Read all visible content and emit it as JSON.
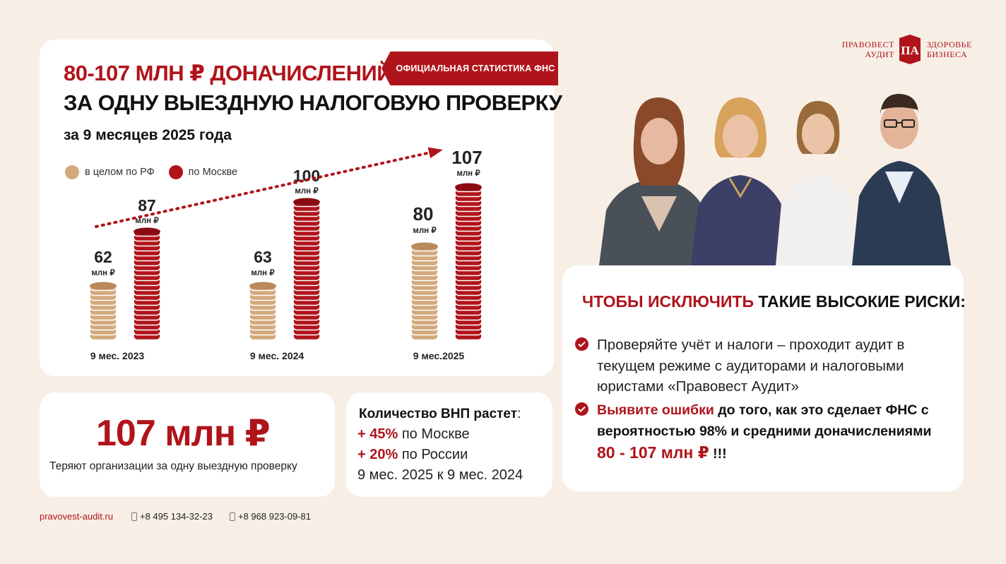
{
  "header": {
    "title_red": "80-107 МЛН ₽ ДОНАЧИСЛЕНИЙ",
    "title_black": "ЗА ОДНУ ВЫЕЗДНУЮ НАЛОГОВУЮ ПРОВЕРКУ",
    "subtitle": "за 9 месяцев 2025 года",
    "badge": "ОФИЦИАЛЬНАЯ СТАТИСТИКА ФНС"
  },
  "colors": {
    "brand_red": "#b0141b",
    "coin_gold": "#d3a97c",
    "background": "#f7efe6"
  },
  "chart_data": {
    "type": "bar",
    "categories": [
      "9 мес. 2023",
      "9 мес. 2024",
      "9 мес.2025"
    ],
    "unit": "млн ₽",
    "series": [
      {
        "name": "в целом по РФ",
        "values": [
          62,
          63,
          80
        ],
        "color": "#d3a97c"
      },
      {
        "name": "по Москве",
        "values": [
          87,
          100,
          107
        ],
        "color": "#b0141b"
      }
    ],
    "legend_position": "top-left",
    "grid": false,
    "trend_arrow": true,
    "ylim": [
      0,
      110
    ]
  },
  "loss": {
    "value": "107 млн ₽",
    "description": "Теряют организации за одну выездную проверку"
  },
  "growth": {
    "title": "Количество ВНП растет",
    "colon": ":",
    "lines": [
      {
        "pct": "+ 45%",
        "text": "по Москве"
      },
      {
        "pct": "+ 20%",
        "text": "по России"
      }
    ],
    "period": "9 мес. 2025 к 9 мес. 2024"
  },
  "tips": {
    "title_red": "ЧТОБЫ ИСКЛЮЧИТЬ",
    "title_black": "ТАКИЕ ВЫСОКИЕ РИСКИ:",
    "tip1": "Проверяйте учёт и налоги – проходит аудит в текущем режиме с аудиторами и налоговыми юристами «Правовест Аудит»",
    "tip2_red": "Выявите ошибки",
    "tip2_text": "до того, как это сделает ФНС с вероятностью 98% и средними доначислениями",
    "tip2_value": "80 - 107 млн ₽",
    "tip2_end": "!!!"
  },
  "footer": {
    "site": "pravovest-audit.ru",
    "phone1": "+8 495 134-32-23",
    "phone2": "+8 968 923-09-81"
  },
  "logo": {
    "left_line1": "ПРАВОВЕСТ",
    "left_line2": "АУДИТ",
    "mark": "ПА",
    "right_line1": "ЗДОРОВЬЕ",
    "right_line2": "БИЗНЕСА"
  }
}
